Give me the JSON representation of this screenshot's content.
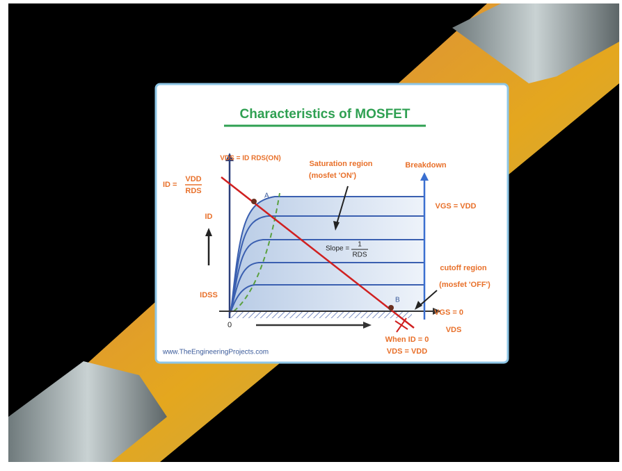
{
  "diagram": {
    "title": "Characteristics of MOSFET",
    "labels": {
      "load_line_eq": "VDS = ID RDS(ON)",
      "saturation": "Saturation region",
      "saturation_note": "(mosfet 'ON')",
      "breakdown": "Breakdown",
      "id_eq": "ID =",
      "id_eq_num": "VDD",
      "id_eq_den": "RDS",
      "point_a": "A",
      "id_axis": "ID",
      "vgs_max": "VGS = VDD",
      "slope": "Slope =",
      "slope_num": "1",
      "slope_den": "RDS",
      "cutoff": "cutoff region",
      "cutoff_note": "(mosfet 'OFF')",
      "idss": "IDSS",
      "point_b": "B",
      "vgs_zero": "VGS = 0",
      "origin": "0",
      "vds_axis": "VDS",
      "when_1": "When ID = 0",
      "when_2": "VDS = VDD"
    },
    "footer": "www.TheEngineeringProjects.com"
  }
}
